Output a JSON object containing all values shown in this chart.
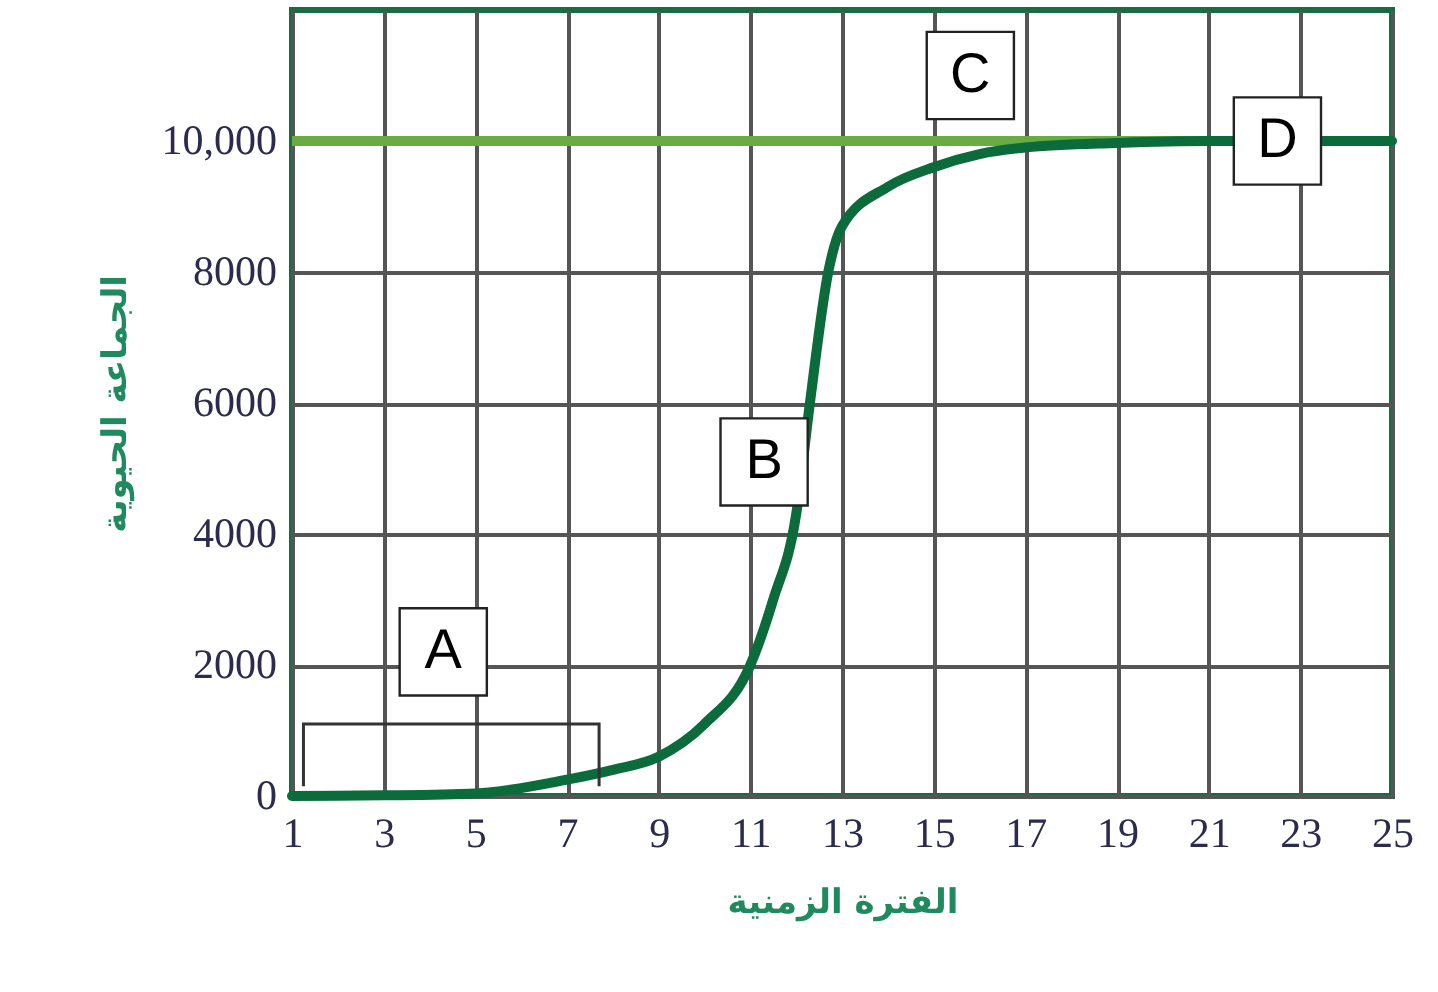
{
  "chart_data": {
    "type": "line",
    "xlabel": "الفترة الزمنية",
    "ylabel": "الجماعة الحيوية",
    "x": [
      1,
      3,
      5,
      7,
      8,
      9,
      10,
      11,
      11.5,
      12,
      12.3,
      12.7,
      13,
      14,
      15,
      16,
      17,
      19,
      21,
      25
    ],
    "series": [
      {
        "color": "#0b6b3a",
        "values": [
          0,
          10,
          40,
          250,
          400,
          600,
          1100,
          2000,
          3000,
          4300,
          6000,
          8000,
          8700,
          9300,
          9600,
          9800,
          9900,
          9970,
          10000,
          10000
        ]
      }
    ],
    "xlim": [
      1,
      25
    ],
    "xticks": [
      1,
      3,
      5,
      7,
      9,
      11,
      13,
      15,
      17,
      19,
      21,
      23,
      25
    ],
    "ylim": [
      0,
      12000
    ],
    "yticks": [
      0,
      2000,
      4000,
      6000,
      8000,
      {
        "value": 10000,
        "label": "10,000"
      }
    ],
    "grid": true,
    "marker": "none",
    "line_style": "solid",
    "ref_lines": [
      {
        "axis": "y",
        "value": 10000,
        "color": "#6aab46"
      }
    ],
    "annotations": [
      {
        "text": "A",
        "x": 4.3,
        "y": 2200
      },
      {
        "text": "B",
        "x": 11.3,
        "y": 5100
      },
      {
        "text": "C",
        "x": 15.8,
        "y": 11000
      },
      {
        "text": "D",
        "x": 22.5,
        "y": 10000
      }
    ]
  }
}
